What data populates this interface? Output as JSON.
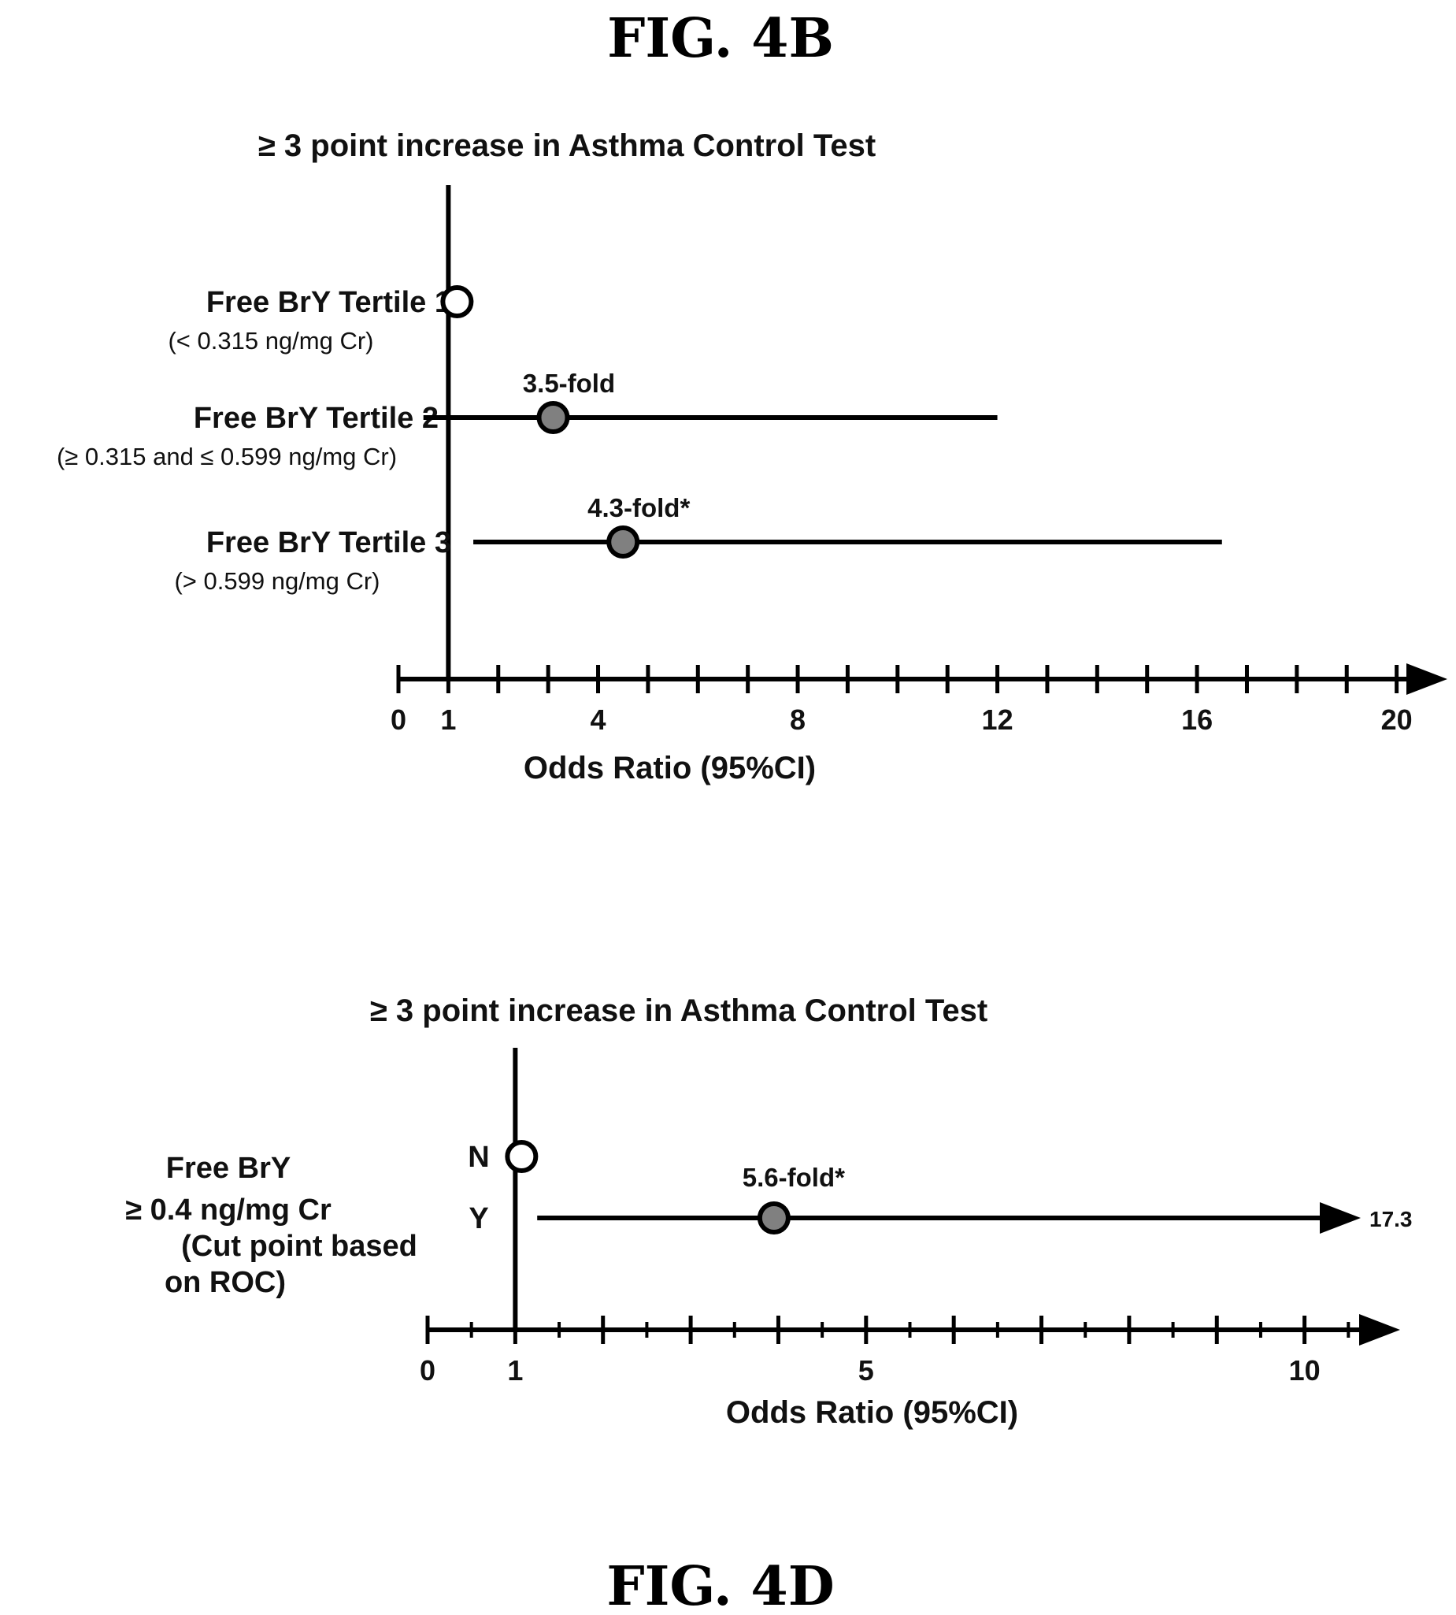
{
  "figures": {
    "top_label": "FIG. 4B",
    "bottom_label": "FIG. 4D"
  },
  "chart_data": [
    {
      "type": "forest",
      "title": "≥ 3 point increase in Asthma Control Test",
      "xlabel": "Odds Ratio (95%CI)",
      "xlim": [
        0,
        21
      ],
      "xticks": [
        0,
        1,
        4,
        8,
        12,
        16,
        20
      ],
      "minor_tick_step": 1,
      "reference_line": 1,
      "rows": [
        {
          "label": "Free BrY Tertile 1",
          "sublabel": "(< 0.315 ng/mg Cr)",
          "or": 1,
          "ci": null,
          "reference": true,
          "annotation": ""
        },
        {
          "label": "Free BrY Tertile 2",
          "sublabel": "(≥ 0.315 and ≤ 0.599 ng/mg Cr)",
          "or": 3.1,
          "ci": [
            0.5,
            12.0
          ],
          "reference": false,
          "annotation": "3.5-fold"
        },
        {
          "label": "Free BrY Tertile 3",
          "sublabel": "(> 0.599 ng/mg Cr)",
          "or": 4.5,
          "ci": [
            1.5,
            16.5
          ],
          "reference": false,
          "annotation": "4.3-fold*"
        }
      ],
      "colors": {
        "reference_marker": "#ffffff",
        "estimate_marker": "#808080",
        "line": "#000000"
      }
    },
    {
      "type": "forest",
      "title": "≥ 3 point increase in Asthma Control Test",
      "xlabel": "Odds Ratio (95%CI)",
      "xlim": [
        0,
        11
      ],
      "xticks": [
        0,
        1,
        5,
        10
      ],
      "minor_tick_step": 0.5,
      "reference_line": 1,
      "group_label": [
        "Free BrY",
        "≥ 0.4 ng/mg Cr",
        "(Cut point based",
        "on ROC)"
      ],
      "rows": [
        {
          "label": "N",
          "or": 1,
          "ci": null,
          "reference": true,
          "annotation": ""
        },
        {
          "label": "Y",
          "or": 3.95,
          "ci": [
            1.25,
            17.3
          ],
          "ci_upper_label": "17.3",
          "ci_truncated": true,
          "reference": false,
          "annotation": "5.6-fold*"
        }
      ],
      "colors": {
        "reference_marker": "#ffffff",
        "estimate_marker": "#808080",
        "line": "#000000"
      }
    }
  ]
}
